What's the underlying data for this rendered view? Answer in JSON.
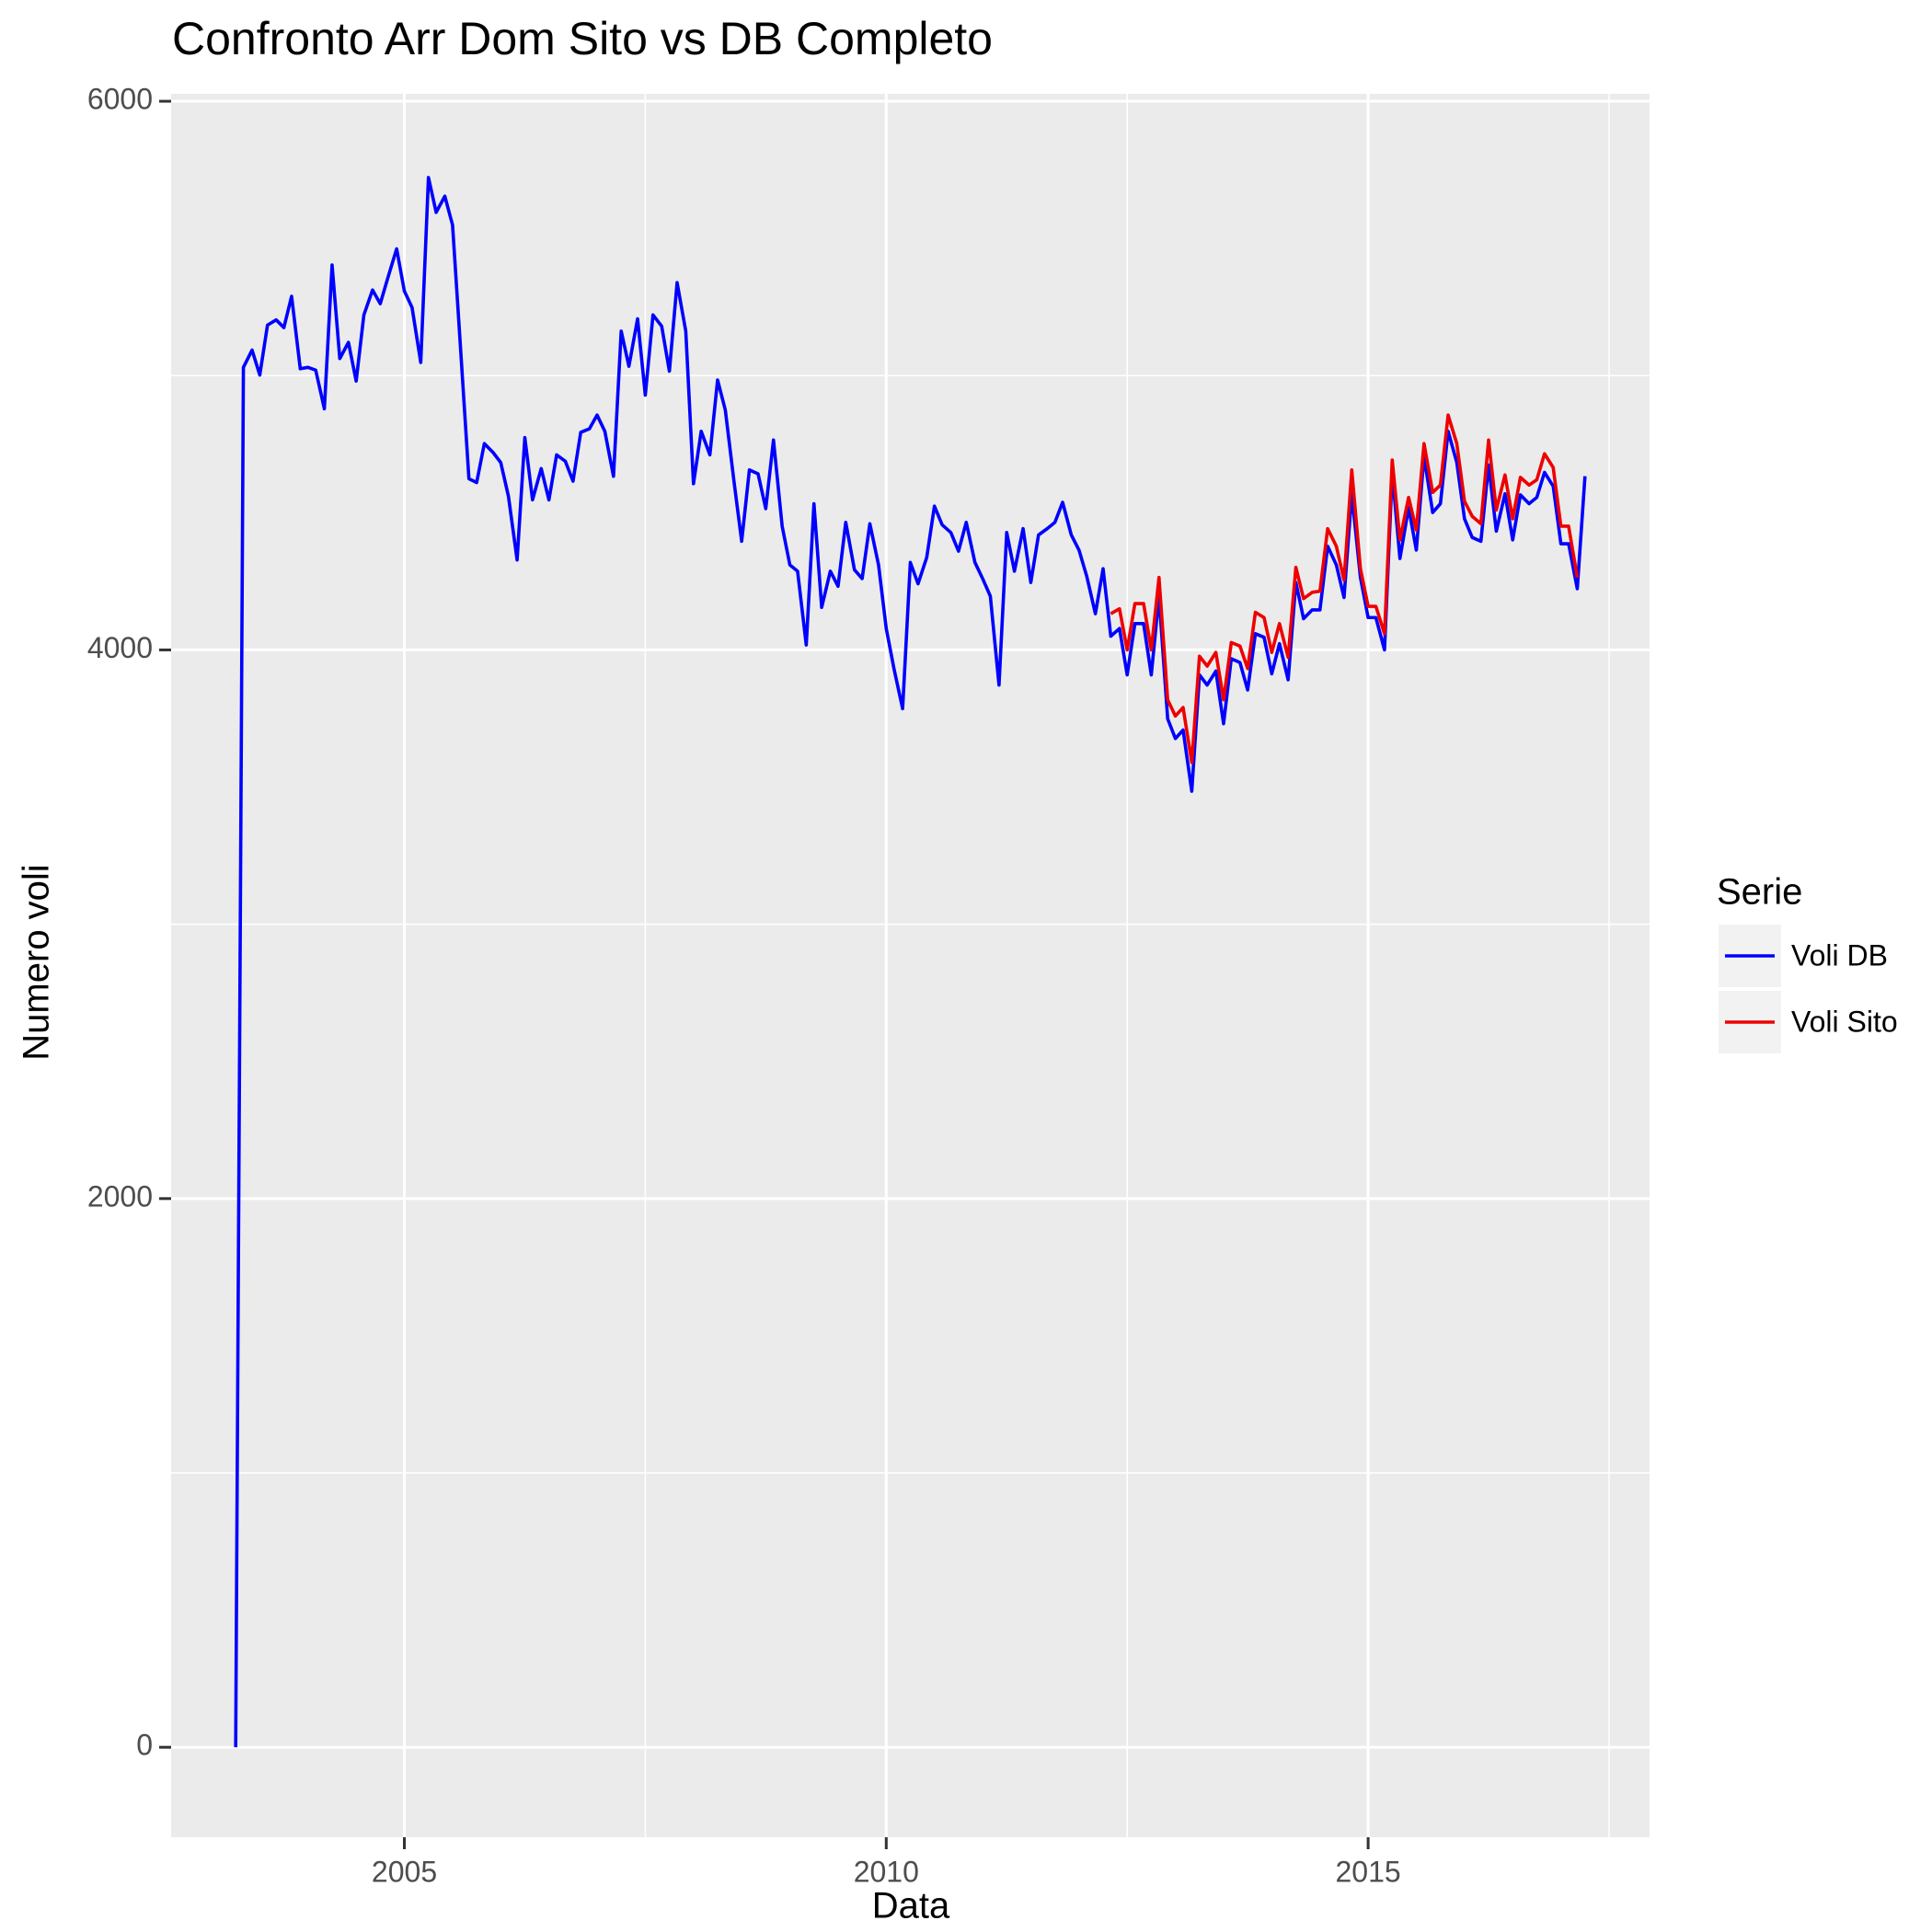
{
  "chart_data": {
    "type": "line",
    "title": "Confronto Arr Dom Sito vs DB Completo",
    "x_label": "Data",
    "y_label": "Numero voli",
    "legend_title": "Serie",
    "legend_position": "right",
    "grid": true,
    "xlim": [
      2002.58,
      2017.92
    ],
    "xticks": [
      2005,
      2010,
      2015
    ],
    "ylim": [
      -328,
      6027
    ],
    "yticks": [
      0,
      2000,
      4000,
      6000
    ],
    "x": [
      2003.25,
      2003.33,
      2003.42,
      2003.5,
      2003.58,
      2003.67,
      2003.75,
      2003.83,
      2003.92,
      2004,
      2004.08,
      2004.17,
      2004.25,
      2004.33,
      2004.42,
      2004.5,
      2004.58,
      2004.67,
      2004.75,
      2004.83,
      2004.92,
      2005,
      2005.08,
      2005.17,
      2005.25,
      2005.33,
      2005.42,
      2005.5,
      2005.58,
      2005.67,
      2005.75,
      2005.83,
      2005.92,
      2006,
      2006.08,
      2006.17,
      2006.25,
      2006.33,
      2006.42,
      2006.5,
      2006.58,
      2006.67,
      2006.75,
      2006.83,
      2006.92,
      2007,
      2007.08,
      2007.17,
      2007.25,
      2007.33,
      2007.42,
      2007.5,
      2007.58,
      2007.67,
      2007.75,
      2007.83,
      2007.92,
      2008,
      2008.08,
      2008.17,
      2008.25,
      2008.33,
      2008.42,
      2008.5,
      2008.58,
      2008.67,
      2008.75,
      2008.83,
      2008.92,
      2009,
      2009.08,
      2009.17,
      2009.25,
      2009.33,
      2009.42,
      2009.5,
      2009.58,
      2009.67,
      2009.75,
      2009.83,
      2009.92,
      2010,
      2010.08,
      2010.17,
      2010.25,
      2010.33,
      2010.42,
      2010.5,
      2010.58,
      2010.67,
      2010.75,
      2010.83,
      2010.92,
      2011,
      2011.08,
      2011.17,
      2011.25,
      2011.33,
      2011.42,
      2011.5,
      2011.58,
      2011.67,
      2011.75,
      2011.83,
      2011.92,
      2012,
      2012.08,
      2012.17,
      2012.25,
      2012.33,
      2012.42,
      2012.5,
      2012.58,
      2012.67,
      2012.75,
      2012.83,
      2012.92,
      2013,
      2013.08,
      2013.17,
      2013.25,
      2013.33,
      2013.42,
      2013.5,
      2013.58,
      2013.67,
      2013.75,
      2013.83,
      2013.92,
      2014,
      2014.08,
      2014.17,
      2014.25,
      2014.33,
      2014.42,
      2014.5,
      2014.58,
      2014.67,
      2014.75,
      2014.83,
      2014.92,
      2015,
      2015.08,
      2015.17,
      2015.25,
      2015.33,
      2015.42,
      2015.5,
      2015.58,
      2015.67,
      2015.75,
      2015.83,
      2015.92,
      2016,
      2016.08,
      2016.17,
      2016.25,
      2016.33,
      2016.42,
      2016.5,
      2016.58,
      2016.67,
      2016.75,
      2016.83,
      2016.92,
      2017,
      2017.08,
      2017.17,
      2017.25
    ],
    "series": [
      {
        "name": "Voli DB",
        "color": "#0000ff",
        "values": [
          0,
          5030,
          5093,
          5002,
          5184,
          5203,
          5175,
          5289,
          5025,
          5030,
          5020,
          4879,
          5403,
          5062,
          5121,
          4980,
          5221,
          5312,
          5262,
          5358,
          5462,
          5308,
          5248,
          5048,
          5722,
          5595,
          5654,
          5549,
          5116,
          4624,
          4610,
          4752,
          4720,
          4683,
          4560,
          4328,
          4774,
          4547,
          4661,
          4547,
          4711,
          4688,
          4615,
          4793,
          4806,
          4856,
          4797,
          4633,
          5162,
          5034,
          5207,
          4929,
          5221,
          5180,
          5016,
          5339,
          5162,
          4606,
          4797,
          4711,
          4984,
          4875,
          4615,
          4396,
          4656,
          4642,
          4515,
          4765,
          4451,
          4310,
          4287,
          4018,
          4533,
          4155,
          4287,
          4232,
          4465,
          4292,
          4260,
          4460,
          4310,
          4078,
          3932,
          3786,
          4319,
          4241,
          4337,
          4524,
          4456,
          4428,
          4360,
          4465,
          4319,
          4260,
          4196,
          3872,
          4428,
          4287,
          4442,
          4246,
          4419,
          4442,
          4465,
          4538,
          4419,
          4364,
          4269,
          4132,
          4296,
          4050,
          4078,
          3909,
          4096,
          4096,
          3909,
          4196,
          3749,
          3677,
          3708,
          3485,
          3909,
          3872,
          3923,
          3731,
          3968,
          3954,
          3854,
          4059,
          4046,
          3913,
          4023,
          3891,
          4246,
          4114,
          4146,
          4146,
          4378,
          4310,
          4191,
          4569,
          4264,
          4118,
          4118,
          4000,
          4647,
          4333,
          4519,
          4364,
          4706,
          4501,
          4533,
          4797,
          4683,
          4478,
          4410,
          4396,
          4674,
          4433,
          4569,
          4401,
          4565,
          4533,
          4556,
          4647,
          4597,
          4387,
          4387,
          4223,
          4633
        ]
      },
      {
        "name": "Voli Sito",
        "color": "#ee0000",
        "values": [
          null,
          null,
          null,
          null,
          null,
          null,
          null,
          null,
          null,
          null,
          null,
          null,
          null,
          null,
          null,
          null,
          null,
          null,
          null,
          null,
          null,
          null,
          null,
          null,
          null,
          null,
          null,
          null,
          null,
          null,
          null,
          null,
          null,
          null,
          null,
          null,
          null,
          null,
          null,
          null,
          null,
          null,
          null,
          null,
          null,
          null,
          null,
          null,
          null,
          null,
          null,
          null,
          null,
          null,
          null,
          null,
          null,
          null,
          null,
          null,
          null,
          null,
          null,
          null,
          null,
          null,
          null,
          null,
          null,
          null,
          null,
          null,
          null,
          null,
          null,
          null,
          null,
          null,
          null,
          null,
          null,
          null,
          null,
          null,
          null,
          null,
          null,
          null,
          null,
          null,
          null,
          null,
          null,
          null,
          null,
          null,
          null,
          null,
          null,
          null,
          null,
          null,
          null,
          null,
          null,
          null,
          null,
          null,
          null,
          4132,
          4150,
          4000,
          4169,
          4169,
          4000,
          4264,
          3818,
          3759,
          3790,
          3590,
          3977,
          3941,
          3991,
          3818,
          4027,
          4014,
          3932,
          4137,
          4118,
          3991,
          4096,
          3973,
          4301,
          4187,
          4210,
          4214,
          4442,
          4378,
          4255,
          4656,
          4296,
          4159,
          4159,
          4059,
          4692,
          4401,
          4556,
          4437,
          4752,
          4574,
          4601,
          4856,
          4752,
          4542,
          4487,
          4460,
          4765,
          4510,
          4638,
          4478,
          4629,
          4601,
          4620,
          4715,
          4665,
          4451,
          4451,
          4264,
          null
        ]
      }
    ]
  }
}
